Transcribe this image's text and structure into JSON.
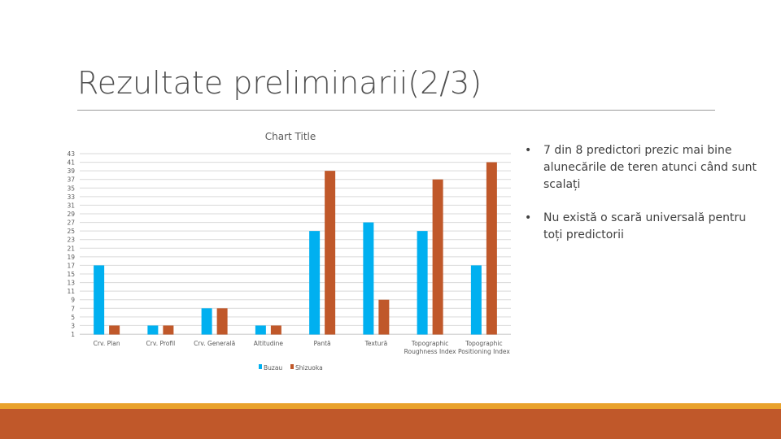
{
  "slide": {
    "title": "Rezultate preliminarii(2/3)",
    "bullets": [
      "7 din 8 predictori prezic mai bine alunecările de teren atunci când sunt scalați",
      "Nu există o scară universală pentru toți predictorii"
    ]
  },
  "colors": {
    "series_1": "#00b0f0",
    "series_2": "#c0582a",
    "footer_top": "#e9a22c",
    "footer_bottom": "#c0582a"
  },
  "chart_data": {
    "type": "bar",
    "title": "Chart Title",
    "xlabel": "",
    "ylabel": "",
    "categories": [
      [
        "Crv. Plan"
      ],
      [
        "Crv. Profil"
      ],
      [
        "Crv. Generală"
      ],
      [
        "Altitudine"
      ],
      [
        "Pantă"
      ],
      [
        "Textură"
      ],
      [
        "Topographic",
        "Roughness Index"
      ],
      [
        "Topographic",
        "Positioning Index"
      ]
    ],
    "series": [
      {
        "name": "Buzau",
        "values": [
          17,
          3,
          7,
          3,
          25,
          27,
          25,
          17
        ]
      },
      {
        "name": "Shizuoka",
        "values": [
          3,
          3,
          7,
          3,
          39,
          9,
          37,
          41
        ]
      }
    ],
    "yticks": [
      "1",
      "3",
      "5",
      "7",
      "9",
      "11",
      "13",
      "15",
      "17",
      "19",
      "21",
      "23",
      "25",
      "27",
      "29",
      "31",
      "33",
      "35",
      "37",
      "39",
      "41",
      "43"
    ],
    "ylim": [
      1,
      43
    ],
    "grid": true,
    "legend": "bottom"
  }
}
